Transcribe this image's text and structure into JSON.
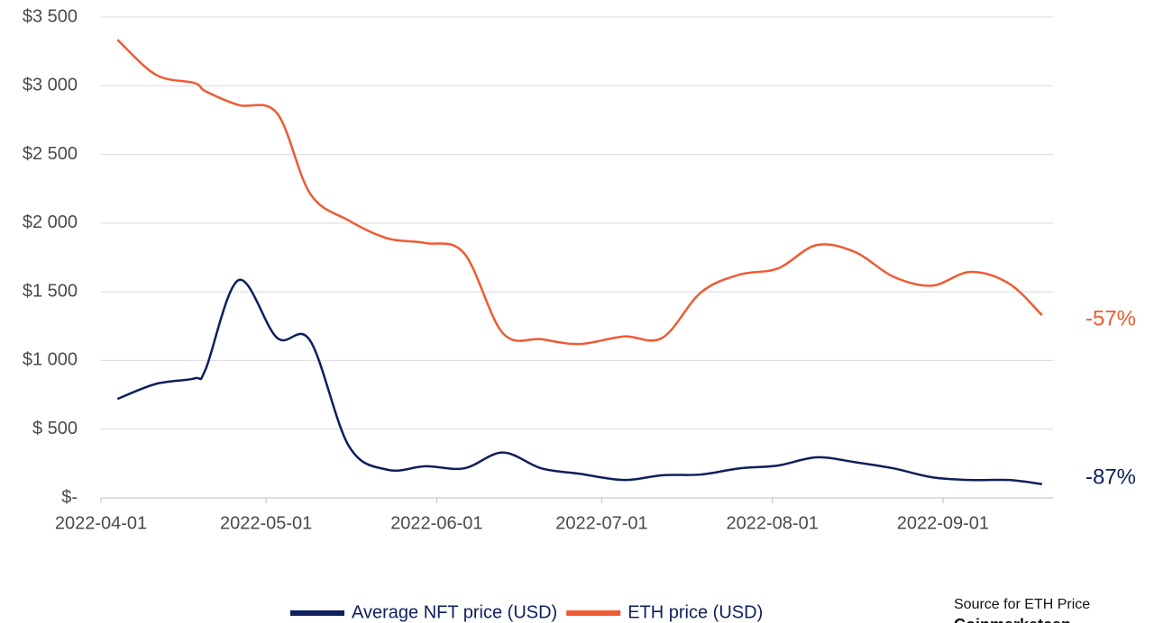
{
  "chart_data": {
    "type": "line",
    "x": [
      "2022-04-04",
      "2022-04-11",
      "2022-04-18",
      "2022-04-20",
      "2022-04-26",
      "2022-05-03",
      "2022-05-09",
      "2022-05-16",
      "2022-05-23",
      "2022-05-30",
      "2022-06-06",
      "2022-06-13",
      "2022-06-20",
      "2022-06-27",
      "2022-07-05",
      "2022-07-12",
      "2022-07-19",
      "2022-07-26",
      "2022-08-02",
      "2022-08-09",
      "2022-08-16",
      "2022-08-23",
      "2022-08-30",
      "2022-09-06",
      "2022-09-13",
      "2022-09-19"
    ],
    "series": [
      {
        "name": "Average NFT price (USD)",
        "color": "#0d1f5c",
        "values": [
          720,
          830,
          870,
          935,
          1585,
          1165,
          1145,
          380,
          205,
          230,
          215,
          330,
          215,
          175,
          130,
          165,
          170,
          215,
          235,
          295,
          260,
          215,
          150,
          130,
          130,
          100
        ]
      },
      {
        "name": "ETH price (USD)",
        "color": "#ef5b32",
        "values": [
          3335,
          3080,
          3020,
          2960,
          2860,
          2800,
          2215,
          2020,
          1890,
          1855,
          1780,
          1200,
          1155,
          1120,
          1175,
          1165,
          1495,
          1625,
          1670,
          1840,
          1790,
          1610,
          1545,
          1645,
          1560,
          1330
        ]
      }
    ],
    "xlim": [
      "2022-04-01",
      "2022-09-21"
    ],
    "xticks": [
      "2022-04-01",
      "2022-05-01",
      "2022-06-01",
      "2022-07-01",
      "2022-08-01",
      "2022-09-01"
    ],
    "ylim": [
      0,
      3500
    ],
    "yticks": [
      {
        "value": 0,
        "label": "$-"
      },
      {
        "value": 500,
        "label": "$ 500"
      },
      {
        "value": 1000,
        "label": "$1 000"
      },
      {
        "value": 1500,
        "label": "$1 500"
      },
      {
        "value": 2000,
        "label": "$2 000"
      },
      {
        "value": 2500,
        "label": "$2 500"
      },
      {
        "value": 3000,
        "label": "$3 000"
      },
      {
        "value": 3500,
        "label": "$3 500"
      }
    ],
    "grid": true,
    "legend": "bottom",
    "annotations": [
      "-57%",
      "-87%"
    ],
    "source": [
      "Source for ETH Price",
      "Coinmarketcap"
    ]
  }
}
